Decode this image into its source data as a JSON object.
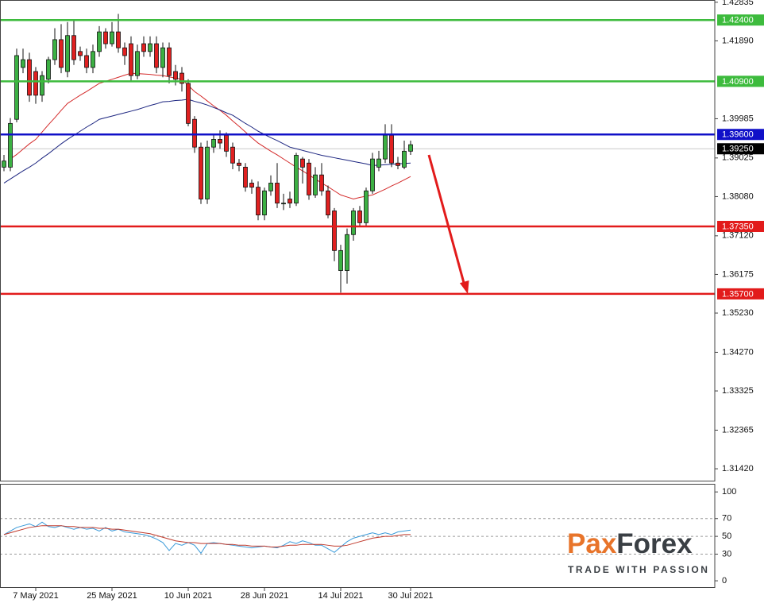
{
  "chart_data": [
    {
      "type": "candlestick",
      "categories": [
        null,
        null,
        null,
        null,
        null,
        "7 May 2021",
        null,
        null,
        null,
        null,
        null,
        null,
        null,
        null,
        null,
        null,
        null,
        "25 May 2021",
        null,
        null,
        null,
        null,
        null,
        null,
        null,
        null,
        null,
        null,
        null,
        "10 Jun 2021",
        null,
        null,
        null,
        null,
        null,
        null,
        null,
        null,
        null,
        null,
        null,
        "28 Jun 2021",
        null,
        null,
        null,
        null,
        null,
        null,
        null,
        null,
        null,
        null,
        null,
        "14 Jul 2021",
        null,
        null,
        null,
        null,
        null,
        null,
        null,
        null,
        null,
        null,
        "30 Jul 2021"
      ],
      "open": [
        1.388,
        1.388,
        1.3997,
        1.4124,
        1.4143,
        1.4114,
        1.4056,
        1.4095,
        1.4143,
        1.4192,
        1.4114,
        1.4202,
        1.4163,
        1.4153,
        1.4124,
        1.4163,
        1.4211,
        1.4182,
        1.4211,
        1.4172,
        1.4182,
        1.4104,
        1.4182,
        1.4163,
        1.4182,
        1.4124,
        1.4172,
        1.4114,
        1.411,
        1.4085,
        1.3997,
        1.3929,
        1.3802,
        1.3929,
        1.3948,
        1.3958,
        1.3929,
        1.389,
        1.388,
        1.3841,
        1.3831,
        1.3763,
        1.3822,
        1.3841,
        1.3792,
        1.3802,
        1.3792,
        1.39,
        1.389,
        1.3812,
        1.3861,
        1.3822,
        1.3773,
        1.3627,
        1.3627,
        1.3715,
        1.3773,
        1.3744,
        1.3822,
        1.388,
        1.39,
        1.3958,
        1.389,
        1.388,
        1.3919
      ],
      "high": [
        1.391,
        1.4,
        1.417,
        1.417,
        1.416,
        1.4125,
        1.4115,
        1.415,
        1.422,
        1.423,
        1.4235,
        1.424,
        1.4175,
        1.417,
        1.418,
        1.4225,
        1.422,
        1.4235,
        1.4255,
        1.4185,
        1.42,
        1.418,
        1.42,
        1.42,
        1.42,
        1.4185,
        1.4185,
        1.413,
        1.4125,
        1.4095,
        1.4005,
        1.394,
        1.3945,
        1.396,
        1.397,
        1.3965,
        1.394,
        1.39,
        1.389,
        1.385,
        1.3845,
        1.383,
        1.386,
        1.389,
        1.3815,
        1.382,
        1.3915,
        1.3905,
        1.39,
        1.388,
        1.389,
        1.3835,
        1.378,
        1.369,
        1.373,
        1.378,
        1.3785,
        1.383,
        1.3915,
        1.392,
        1.3985,
        1.3985,
        1.3905,
        1.3945,
        1.3945
      ],
      "low": [
        1.387,
        1.387,
        1.399,
        1.411,
        1.404,
        1.4035,
        1.404,
        1.4085,
        1.413,
        1.411,
        1.41,
        1.413,
        1.414,
        1.411,
        1.411,
        1.415,
        1.417,
        1.4175,
        1.416,
        1.413,
        1.409,
        1.4095,
        1.415,
        1.415,
        1.411,
        1.41,
        1.4085,
        1.408,
        1.4065,
        1.398,
        1.3915,
        1.379,
        1.379,
        1.3915,
        1.3925,
        1.3905,
        1.3875,
        1.387,
        1.382,
        1.3815,
        1.375,
        1.375,
        1.381,
        1.378,
        1.3775,
        1.378,
        1.3785,
        1.384,
        1.38,
        1.3805,
        1.381,
        1.3755,
        1.365,
        1.3573,
        1.3595,
        1.37,
        1.3735,
        1.3735,
        1.3815,
        1.387,
        1.389,
        1.388,
        1.3875,
        1.3875,
        1.391
      ],
      "close": [
        1.3895,
        1.3987,
        1.4153,
        1.4143,
        1.4056,
        1.4056,
        1.4104,
        1.4143,
        1.4192,
        1.4124,
        1.4202,
        1.4143,
        1.4153,
        1.4124,
        1.4163,
        1.4211,
        1.4182,
        1.4211,
        1.4172,
        1.4153,
        1.4104,
        1.4163,
        1.4163,
        1.4182,
        1.4124,
        1.4172,
        1.4104,
        1.4095,
        1.4085,
        1.3987,
        1.3929,
        1.3802,
        1.3929,
        1.3948,
        1.3939,
        1.3919,
        1.389,
        1.3884,
        1.3831,
        1.3831,
        1.3763,
        1.3822,
        1.3841,
        1.3792,
        1.3792,
        1.3792,
        1.3909,
        1.388,
        1.3812,
        1.3861,
        1.3822,
        1.3763,
        1.3676,
        1.3676,
        1.3715,
        1.3773,
        1.3744,
        1.3822,
        1.39,
        1.39,
        1.3958,
        1.389,
        1.3884,
        1.3919,
        1.3935
      ],
      "up_color": "#3cb043",
      "down_color": "#e02020",
      "lines": [
        {
          "color": "#d42a2a",
          "values": [
            null,
            1.39,
            1.3911,
            1.3924,
            1.3937,
            1.3948,
            1.3966,
            1.3984,
            1.4001,
            1.4019,
            1.4036,
            1.4046,
            1.4056,
            1.4065,
            1.4075,
            1.4085,
            1.409,
            1.4095,
            1.41,
            1.4105,
            1.411,
            1.4109,
            1.4108,
            1.4107,
            1.4105,
            1.4104,
            1.4101,
            1.4098,
            1.4095,
            1.408,
            1.4065,
            1.4054,
            1.4042,
            1.403,
            1.4019,
            1.4007,
            1.3993,
            1.398,
            1.3966,
            1.3952,
            1.3939,
            1.3929,
            1.3919,
            1.391,
            1.39,
            1.389,
            1.388,
            1.3871,
            1.3861,
            1.3851,
            1.3841,
            1.3832,
            1.3822,
            1.3812,
            1.3807,
            1.3802,
            1.3806,
            1.3809,
            1.3812,
            1.3819,
            1.3826,
            1.3834,
            1.3841,
            1.3849,
            1.3857
          ]
        },
        {
          "color": "#1c2580",
          "values": [
            1.3841,
            1.3851,
            1.3861,
            1.3871,
            1.388,
            1.389,
            1.3902,
            1.3913,
            1.3925,
            1.3937,
            1.3948,
            1.3958,
            1.3968,
            1.3978,
            1.3987,
            1.3997,
            1.4001,
            1.4005,
            1.4009,
            1.4013,
            1.4017,
            1.4021,
            1.4026,
            1.4031,
            1.4035,
            1.404,
            1.4041,
            1.4043,
            1.4044,
            1.4046,
            1.4041,
            1.4037,
            1.4032,
            1.4026,
            1.402,
            1.4013,
            1.4007,
            1.3997,
            1.3987,
            1.3978,
            1.3968,
            1.396,
            1.3952,
            1.3945,
            1.3937,
            1.3929,
            1.3925,
            1.3921,
            1.3917,
            1.3913,
            1.3909,
            1.3906,
            1.3903,
            1.39,
            1.3897,
            1.3894,
            1.3891,
            1.3888,
            1.3884,
            1.3885,
            1.3886,
            1.3887,
            1.3888,
            1.3889,
            1.389
          ]
        }
      ],
      "levels": [
        {
          "value": 1.424,
          "label": "1.42400",
          "color": "#3dbb3d"
        },
        {
          "value": 1.409,
          "label": "1.40900",
          "color": "#3dbb3d"
        },
        {
          "value": 1.396,
          "label": "1.39600",
          "color": "#1010c8"
        },
        {
          "value": 1.3735,
          "label": "1.37350",
          "color": "#e21b1b"
        },
        {
          "value": 1.357,
          "label": "1.35700",
          "color": "#e21b1b"
        }
      ],
      "current_price": {
        "value": 1.3925,
        "label": "1.39250",
        "color": "#c8c8c8"
      },
      "ylim": [
        1.3111,
        1.4289
      ],
      "yticks": [
        1.42835,
        {
          "value": 1.4189,
          "label": "1.41890"
        },
        1.39985,
        1.39025,
        {
          "value": 1.3808,
          "label": "1.38080"
        },
        {
          "value": 1.3712,
          "label": "1.37120"
        },
        1.36175,
        {
          "value": 1.3523,
          "label": "1.35230"
        },
        {
          "value": 1.3427,
          "label": "1.34270"
        },
        1.33325,
        1.32365,
        {
          "value": 1.3142,
          "label": "1.31420"
        }
      ]
    },
    {
      "type": "line",
      "series": [
        {
          "color": "#3a9ad9",
          "values": [
            52,
            56,
            60,
            62,
            64,
            61,
            66,
            61,
            60,
            62,
            60,
            58,
            60,
            58,
            59,
            56,
            60,
            56,
            58,
            55,
            54,
            53,
            52,
            50,
            47,
            43,
            34,
            42,
            40,
            43,
            40,
            31,
            42,
            43,
            42,
            41,
            40,
            39,
            38,
            37,
            38,
            39,
            38,
            37,
            40,
            44,
            42,
            45,
            43,
            40,
            40,
            36,
            32,
            38,
            44,
            48,
            50,
            52,
            54,
            52,
            54,
            52,
            55,
            56,
            57
          ]
        },
        {
          "color": "#c0392b",
          "values": [
            52,
            54,
            56,
            58,
            60,
            61,
            62,
            62,
            62,
            62,
            61,
            61,
            60,
            60,
            60,
            59,
            59,
            58,
            58,
            57,
            56,
            55,
            54,
            53,
            51,
            49,
            47,
            45,
            44,
            43,
            43,
            42,
            42,
            42,
            42,
            41,
            41,
            40,
            40,
            39,
            39,
            39,
            38,
            38,
            39,
            40,
            40,
            41,
            41,
            41,
            41,
            40,
            39,
            39,
            40,
            42,
            44,
            46,
            48,
            49,
            50,
            50,
            51,
            52,
            52
          ]
        }
      ],
      "ylim": [
        -8,
        110
      ],
      "yticks": [
        0,
        30,
        50,
        70,
        100
      ],
      "dashed_lines": [
        30,
        50,
        70
      ]
    }
  ],
  "logo": {
    "parts": [
      "Pa",
      "x",
      "Forex"
    ],
    "colors": [
      "#e8742a",
      "#e8742a",
      "#3a3f44"
    ],
    "tagline": "TRADE WITH PASSION"
  }
}
